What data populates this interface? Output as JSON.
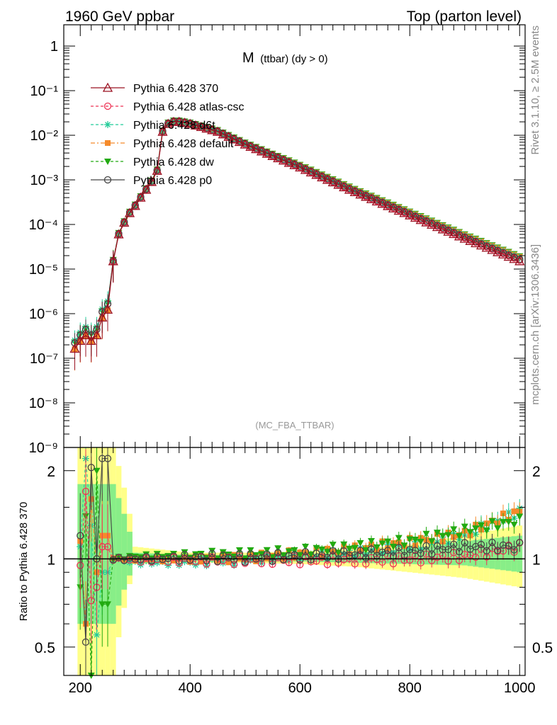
{
  "header": {
    "left": "1960 GeV ppbar",
    "right": "Top (parton level)"
  },
  "plot_title": {
    "main": "M",
    "sub": "(ttbar) (dy > 0)"
  },
  "side_labels": {
    "rivet": "Rivet 3.1.10, ≥ 2.5M events",
    "source": "mcplots.cern.ch [arXiv:1306.3436]"
  },
  "analysis_label": "(MC_FBA_TTBAR)",
  "ratio_ylabel": "Ratio to Pythia 6.428 370",
  "colors": {
    "p370": "#9a1020",
    "atlas_csc": "#ee3355",
    "d6t": "#22cc99",
    "default": "#f58a2a",
    "dw": "#22aa11",
    "p0": "#444444",
    "band_yellow": "#ffff88",
    "band_green": "#88ee88"
  },
  "chart_data": [
    {
      "type": "line",
      "panel": "main",
      "xlim": [
        170,
        1010
      ],
      "ylim": [
        1e-09,
        3
      ],
      "yscale": "log",
      "y_ticks": [
        {
          "value": 1,
          "label": "1"
        },
        {
          "value": 0.1,
          "label": "10⁻¹"
        },
        {
          "value": 0.01,
          "label": "10⁻²"
        },
        {
          "value": 0.001,
          "label": "10⁻³"
        },
        {
          "value": 0.0001,
          "label": "10⁻⁴"
        },
        {
          "value": 1e-05,
          "label": "10⁻⁵"
        },
        {
          "value": 1e-06,
          "label": "10⁻⁶"
        },
        {
          "value": 1e-07,
          "label": "10⁻⁷"
        },
        {
          "value": 1e-08,
          "label": "10⁻⁸"
        },
        {
          "value": 1e-09,
          "label": "10⁻⁹"
        }
      ],
      "legend_position": "top-left",
      "series": [
        {
          "name": "Pythia 6.428 370",
          "key": "p370",
          "marker": "triangle-open",
          "dash": "solid"
        },
        {
          "name": "Pythia 6.428 atlas-csc",
          "key": "atlas_csc",
          "marker": "circle-open",
          "dash": "dashed"
        },
        {
          "name": "Pythia 6.428 d6t",
          "key": "d6t",
          "marker": "star",
          "dash": "dashed"
        },
        {
          "name": "Pythia 6.428 default",
          "key": "default",
          "marker": "square-filled",
          "dash": "dashdot"
        },
        {
          "name": "Pythia 6.428 dw",
          "key": "dw",
          "marker": "triangle-down-filled",
          "dash": "dashed"
        },
        {
          "name": "Pythia 6.428 p0",
          "key": "p0",
          "marker": "circle-open",
          "dash": "solid"
        }
      ],
      "reference_curve": {
        "x": [
          190,
          200,
          210,
          220,
          230,
          240,
          250,
          260,
          270,
          280,
          290,
          300,
          310,
          320,
          330,
          340,
          350,
          360,
          370,
          380,
          390,
          400,
          450,
          500,
          600,
          700,
          800,
          900,
          1000
        ],
        "y": [
          2e-07,
          3e-07,
          4e-07,
          3e-07,
          4e-07,
          1e-06,
          1.5e-06,
          1.5e-05,
          6e-05,
          0.00011,
          0.00018,
          0.00026,
          0.0004,
          0.0006,
          0.0009,
          0.0016,
          0.012,
          0.018,
          0.02,
          0.02,
          0.019,
          0.018,
          0.012,
          0.0062,
          0.0019,
          0.00053,
          0.00016,
          4.8e-05,
          1.5e-05
        ]
      },
      "series_offsets": {
        "p370": 1.0,
        "atlas_csc": 0.98,
        "d6t": 1.02,
        "default": 1.05,
        "dw": 1.08,
        "p0": 1.04
      },
      "series_offsets_high_mass": {
        "p370": 1.0,
        "atlas_csc": 1.05,
        "d6t": 1.2,
        "default": 1.25,
        "dw": 1.3,
        "p0": 1.1
      }
    },
    {
      "type": "line",
      "panel": "ratio",
      "xlim": [
        170,
        1010
      ],
      "ylim": [
        0.4,
        2.4
      ],
      "yscale": "log",
      "y_ticks": [
        {
          "value": 0.5,
          "label": "0.5"
        },
        {
          "value": 1,
          "label": "1"
        },
        {
          "value": 2,
          "label": "2"
        }
      ],
      "x_ticks": [
        {
          "value": 200,
          "label": "200"
        },
        {
          "value": 400,
          "label": "400"
        },
        {
          "value": 600,
          "label": "600"
        },
        {
          "value": 800,
          "label": "800"
        },
        {
          "value": 1000,
          "label": "1000"
        }
      ],
      "band_yellow": {
        "x": [
          200,
          260,
          300,
          400,
          500,
          600,
          700,
          800,
          900,
          1000
        ],
        "low": [
          0.4,
          0.4,
          0.96,
          0.97,
          0.97,
          0.96,
          0.94,
          0.9,
          0.86,
          0.8
        ],
        "high": [
          2.4,
          2.4,
          1.1,
          1.05,
          1.05,
          1.06,
          1.08,
          1.12,
          1.2,
          1.3
        ]
      },
      "band_green": {
        "x": [
          200,
          260,
          300,
          400,
          500,
          600,
          700,
          800,
          900,
          1000
        ],
        "low": [
          0.6,
          0.6,
          0.97,
          0.98,
          0.98,
          0.98,
          0.97,
          0.96,
          0.95,
          0.9
        ],
        "high": [
          1.8,
          1.8,
          1.05,
          1.03,
          1.03,
          1.04,
          1.05,
          1.08,
          1.15,
          1.2
        ]
      },
      "ratio_trend": {
        "x": [
          260,
          300,
          400,
          500,
          600,
          700,
          800,
          900,
          1000
        ],
        "d6t": [
          1.0,
          0.97,
          0.97,
          0.99,
          1.02,
          1.05,
          1.1,
          1.2,
          1.45
        ],
        "default": [
          1.0,
          1.0,
          1.0,
          1.01,
          1.04,
          1.08,
          1.14,
          1.22,
          1.45
        ],
        "dw": [
          1.0,
          1.02,
          1.03,
          1.04,
          1.06,
          1.1,
          1.15,
          1.25,
          1.35
        ],
        "atlas_csc": [
          1.0,
          0.99,
          0.99,
          0.99,
          0.99,
          0.99,
          1.0,
          1.02,
          1.1
        ],
        "p0": [
          1.0,
          1.0,
          1.01,
          1.01,
          1.02,
          1.04,
          1.06,
          1.1,
          1.1
        ]
      }
    }
  ]
}
